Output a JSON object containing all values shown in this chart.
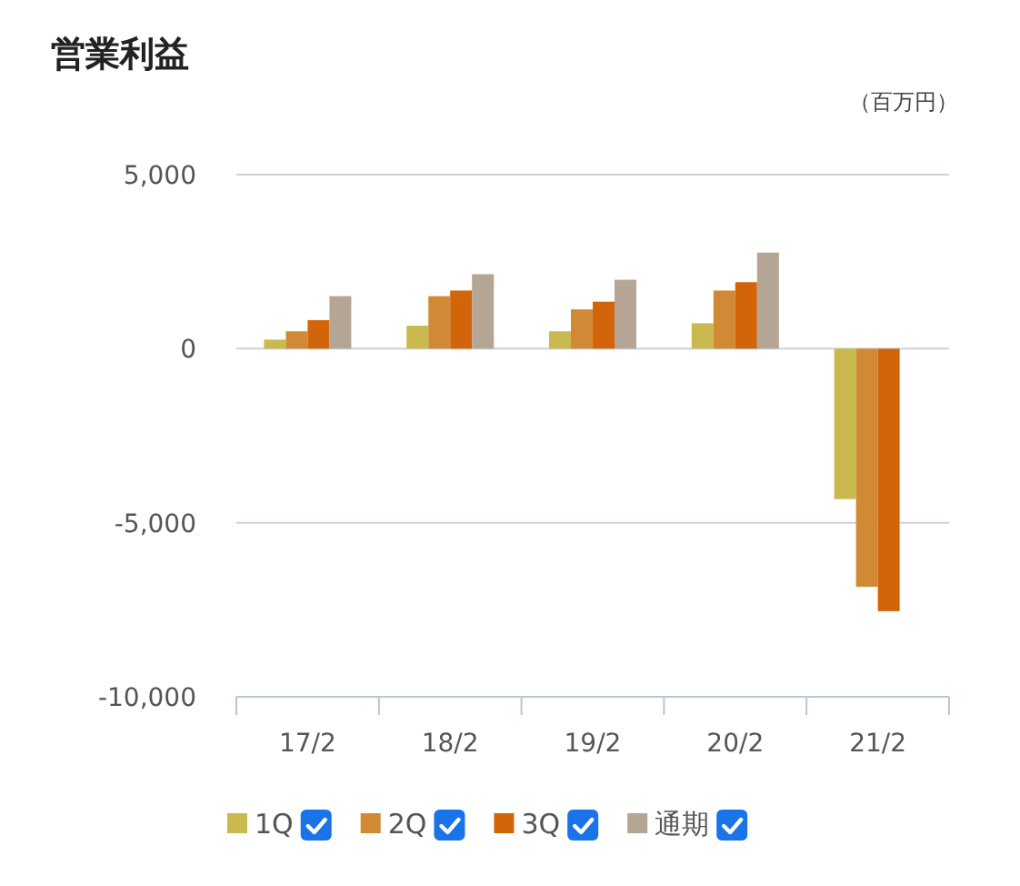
{
  "chart_data": {
    "type": "bar",
    "title": "営業利益",
    "ylabel": "（百万円）",
    "categories": [
      "17/2",
      "18/2",
      "19/2",
      "20/2",
      "21/2"
    ],
    "series": [
      {
        "name": "1Q",
        "color": "#c9b94f",
        "values": [
          260,
          660,
          500,
          730,
          -4320
        ]
      },
      {
        "name": "2Q",
        "color": "#d08a35",
        "values": [
          500,
          1510,
          1130,
          1670,
          -6840
        ]
      },
      {
        "name": "3Q",
        "color": "#d2640a",
        "values": [
          820,
          1670,
          1350,
          1910,
          -7540
        ]
      },
      {
        "name": "通期",
        "color": "#b5a595",
        "values": [
          1510,
          2140,
          1980,
          2760,
          null
        ]
      }
    ],
    "ylim": [
      -10000,
      5000
    ],
    "yticks": [
      {
        "value": -10000,
        "label": "-10,000"
      },
      {
        "value": -5000,
        "label": "-5,000"
      },
      {
        "value": 0,
        "label": "0"
      },
      {
        "value": 5000,
        "label": "5,000"
      }
    ],
    "grid": "y",
    "legend": "bottom"
  }
}
